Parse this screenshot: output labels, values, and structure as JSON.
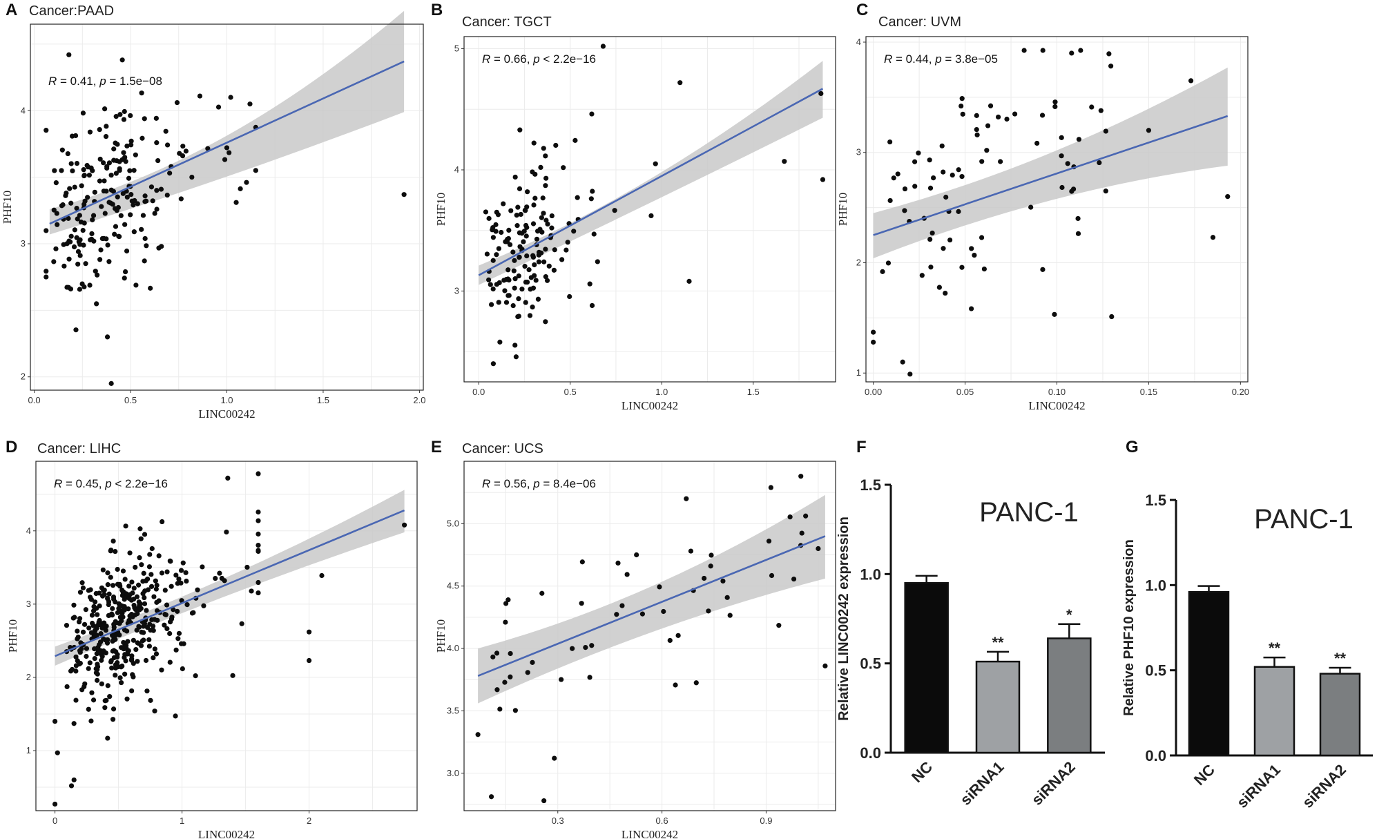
{
  "chart_data": [
    {
      "id": "A",
      "type": "scatter",
      "letter": "A",
      "title": "Cancer:PAAD",
      "xlabel": "LINC00242",
      "ylabel": "PHF10",
      "xlim": [
        -0.02,
        2.02
      ],
      "ylim": [
        1.9,
        4.65
      ],
      "xticks": [
        0.0,
        0.5,
        1.0,
        1.5,
        2.0
      ],
      "xtick_labels": [
        "0.0",
        "0.5",
        "1.0",
        "1.5",
        "2.0"
      ],
      "yticks": [
        2,
        3,
        4
      ],
      "ytick_labels": [
        "2",
        "3",
        "4"
      ],
      "stats": {
        "r": "0.41",
        "p": "1.5e−08"
      },
      "fit": {
        "x0": 0.08,
        "y0": 3.15,
        "x1": 1.92,
        "y1": 4.37
      },
      "band": {
        "lower0": 3.07,
        "upper0": 3.26,
        "lowerm": 3.46,
        "upperm": 3.64,
        "lower1": 3.99,
        "upper1": 4.75
      },
      "seed": 11,
      "n": 210,
      "xdist": "gamma",
      "xscale": 0.38,
      "xmax": 1.15,
      "resid": 0.36,
      "points": [
        [
          1.92,
          3.37
        ],
        [
          0.4,
          1.95
        ],
        [
          0.18,
          4.42
        ],
        [
          0.86,
          4.11
        ],
        [
          1.02,
          4.1
        ],
        [
          1.12,
          4.05
        ],
        [
          0.66,
          2.98
        ],
        [
          0.38,
          2.3
        ]
      ]
    },
    {
      "id": "B",
      "type": "scatter",
      "letter": "B",
      "title": "Cancer: TGCT",
      "xlabel": "LINC00242",
      "ylabel": "PHF10",
      "xlim": [
        -0.08,
        1.95
      ],
      "ylim": [
        2.25,
        5.1
      ],
      "xticks": [
        0.0,
        0.5,
        1.0,
        1.5
      ],
      "xtick_labels": [
        "0.0",
        "0.5",
        "1.0",
        "1.5"
      ],
      "yticks": [
        3,
        4,
        5
      ],
      "ytick_labels": [
        "3",
        "4",
        "5"
      ],
      "stats": {
        "r": "0.66",
        "p": "< 2.2e−16"
      },
      "fit": {
        "x0": 0.0,
        "y0": 3.13,
        "x1": 1.88,
        "y1": 4.67
      },
      "band": {
        "lower0": 3.05,
        "upper0": 3.21,
        "lowerm": 3.7,
        "upperm": 3.82,
        "lower1": 4.43,
        "upper1": 4.9
      },
      "seed": 23,
      "n": 150,
      "xdist": "gamma",
      "xscale": 0.28,
      "xmax": 1.3,
      "resid": 0.33,
      "points": [
        [
          1.88,
          3.92
        ],
        [
          1.87,
          4.63
        ],
        [
          0.68,
          5.02
        ],
        [
          1.67,
          4.07
        ],
        [
          1.1,
          4.72
        ],
        [
          0.08,
          2.4
        ],
        [
          1.15,
          3.08
        ],
        [
          0.62,
          2.88
        ]
      ]
    },
    {
      "id": "C",
      "type": "scatter",
      "letter": "C",
      "title": "Cancer: UVM",
      "xlabel": "LINC00242",
      "ylabel": "PHF10",
      "xlim": [
        -0.004,
        0.204
      ],
      "ylim": [
        0.92,
        4.05
      ],
      "xticks": [
        0.0,
        0.05,
        0.1,
        0.15,
        0.2
      ],
      "xtick_labels": [
        "0.00",
        "0.05",
        "0.10",
        "0.15",
        "0.20"
      ],
      "yticks": [
        1,
        2,
        3,
        4
      ],
      "ytick_labels": [
        "1",
        "2",
        "3",
        "4"
      ],
      "stats": {
        "r": "0.44",
        "p": "3.8e−05"
      },
      "fit": {
        "x0": 0.0,
        "y0": 2.25,
        "x1": 0.193,
        "y1": 3.33
      },
      "band": {
        "lower0": 2.04,
        "upper0": 2.45,
        "lowerm": 2.65,
        "upperm": 2.9,
        "lower1": 2.88,
        "upper1": 3.77
      },
      "seed": 37,
      "n": 80,
      "xdist": "uniform",
      "xscale": 0.12,
      "xmax": 0.13,
      "resid": 0.62,
      "points": [
        [
          0.108,
          3.9
        ],
        [
          0.173,
          3.65
        ],
        [
          0.193,
          2.6
        ],
        [
          0.185,
          2.23
        ],
        [
          0.0,
          1.28
        ],
        [
          0.0,
          1.37
        ],
        [
          0.02,
          0.99
        ],
        [
          0.016,
          1.1
        ],
        [
          0.15,
          3.2
        ]
      ]
    },
    {
      "id": "D",
      "type": "scatter",
      "letter": "D",
      "title": "Cancer: LIHC",
      "xlabel": "LINC00242",
      "ylabel": "PHF10",
      "xlim": [
        -0.15,
        2.85
      ],
      "ylim": [
        0.18,
        4.95
      ],
      "xticks": [
        0,
        1,
        2
      ],
      "xtick_labels": [
        "0",
        "1",
        "2"
      ],
      "yticks": [
        1,
        2,
        3,
        4
      ],
      "ytick_labels": [
        "1",
        "2",
        "3",
        "4"
      ],
      "stats": {
        "r": "0.45",
        "p": "< 2.2e−16"
      },
      "fit": {
        "x0": 0.0,
        "y0": 2.29,
        "x1": 2.75,
        "y1": 4.28
      },
      "band": {
        "lower0": 2.16,
        "upper0": 2.42,
        "lowerm": 3.17,
        "upperm": 3.3,
        "lower1": 3.98,
        "upper1": 4.56
      },
      "seed": 53,
      "n": 390,
      "xdist": "gamma",
      "xscale": 0.55,
      "xmax": 1.6,
      "resid": 0.5,
      "points": [
        [
          0.0,
          0.27
        ],
        [
          0.0,
          1.4
        ],
        [
          0.02,
          0.97
        ],
        [
          0.15,
          0.6
        ],
        [
          0.13,
          0.52
        ],
        [
          2.75,
          4.08
        ],
        [
          2.0,
          2.62
        ],
        [
          2.0,
          2.23
        ],
        [
          1.6,
          4.78
        ],
        [
          1.36,
          4.72
        ],
        [
          2.1,
          3.39
        ]
      ]
    },
    {
      "id": "E",
      "type": "scatter",
      "letter": "E",
      "title": "Cancer: UCS",
      "xlabel": "LINC00242",
      "ylabel": "PHF10",
      "xlim": [
        0.03,
        1.1
      ],
      "ylim": [
        2.7,
        5.5
      ],
      "xticks": [
        0.3,
        0.6,
        0.9
      ],
      "xtick_labels": [
        "0.3",
        "0.6",
        "0.9"
      ],
      "yticks": [
        3.0,
        3.5,
        4.0,
        4.5,
        5.0
      ],
      "ytick_labels": [
        "3.0",
        "3.5",
        "4.0",
        "4.5",
        "5.0"
      ],
      "stats": {
        "r": "0.56",
        "p": "8.4e−06"
      },
      "fit": {
        "x0": 0.07,
        "y0": 3.78,
        "x1": 1.07,
        "y1": 4.9
      },
      "band": {
        "lower0": 3.56,
        "upper0": 4.0,
        "lowerm": 4.18,
        "upperm": 4.4,
        "lower1": 4.56,
        "upper1": 5.23
      },
      "seed": 71,
      "n": 52,
      "xdist": "uniform",
      "xscale": 0.6,
      "xmax": 0.98,
      "resid": 0.4,
      "points": [
        [
          1.0,
          5.38
        ],
        [
          1.07,
          3.86
        ],
        [
          0.26,
          2.78
        ],
        [
          0.07,
          3.31
        ],
        [
          0.67,
          5.2
        ],
        [
          0.29,
          3.12
        ],
        [
          1.05,
          4.8
        ]
      ]
    },
    {
      "id": "F",
      "type": "bar",
      "letter": "F",
      "title": "PANC-1",
      "ylabel": "Relative LINC00242 expression",
      "categories": [
        "NC",
        "siRNA1",
        "siRNA2"
      ],
      "values": [
        0.95,
        0.51,
        0.64
      ],
      "errors": [
        0.04,
        0.055,
        0.08
      ],
      "significance": [
        "",
        "**",
        "*"
      ],
      "colors": [
        "#0b0b0b",
        "#9ea1a4",
        "#7b7e80"
      ],
      "ylim": [
        0,
        1.5
      ],
      "yticks": [
        0.0,
        0.5,
        1.0,
        1.5
      ],
      "ytick_labels": [
        "0.0",
        "0.5",
        "1.0",
        "1.5"
      ]
    },
    {
      "id": "G",
      "type": "bar",
      "letter": "G",
      "title": "PANC-1",
      "ylabel": "Relative PHF10 expression",
      "categories": [
        "NC",
        "siRNA1",
        "siRNA2"
      ],
      "values": [
        0.96,
        0.52,
        0.48
      ],
      "errors": [
        0.035,
        0.055,
        0.035
      ],
      "significance": [
        "",
        "**",
        "**"
      ],
      "colors": [
        "#0b0b0b",
        "#9ea1a4",
        "#7b7e80"
      ],
      "ylim": [
        0,
        1.5
      ],
      "yticks": [
        0.0,
        0.5,
        1.0,
        1.5
      ],
      "ytick_labels": [
        "0.0",
        "0.5",
        "1.0",
        "1.5"
      ]
    }
  ],
  "colors": {
    "point": "#0d0d0d",
    "fit_line": "#4a67b3",
    "band": "#c9c9c9",
    "grid": "#ebebeb",
    "frame": "#222222"
  }
}
